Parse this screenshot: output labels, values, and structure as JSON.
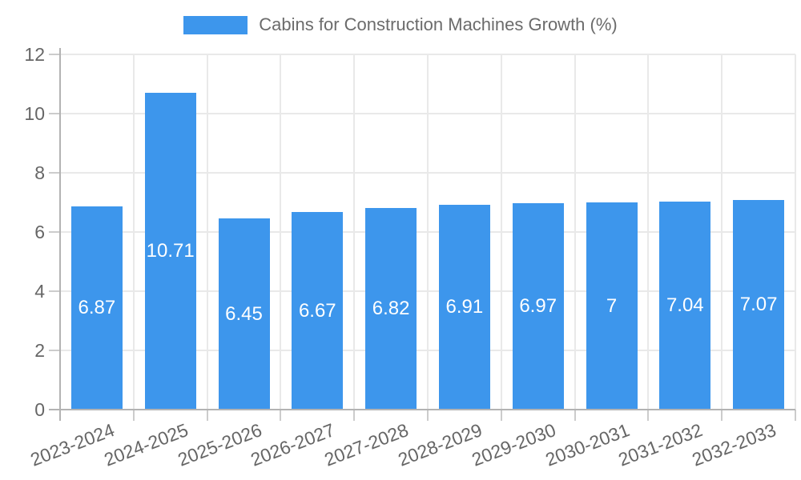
{
  "legend": {
    "label": "Cabins for Construction Machines Growth (%)"
  },
  "chart_data": {
    "type": "bar",
    "title": "Cabins for Construction Machines Growth (%)",
    "categories": [
      "2023-2024",
      "2024-2025",
      "2025-2026",
      "2026-2027",
      "2027-2028",
      "2028-2029",
      "2029-2030",
      "2030-2031",
      "2031-2032",
      "2032-2033"
    ],
    "values": [
      6.87,
      10.71,
      6.45,
      6.67,
      6.82,
      6.91,
      6.97,
      7,
      7.04,
      7.07
    ],
    "value_labels": [
      "6.87",
      "10.71",
      "6.45",
      "6.67",
      "6.82",
      "6.91",
      "6.97",
      "7",
      "7.04",
      "7.07"
    ],
    "xlabel": "",
    "ylabel": "",
    "ylim": [
      0,
      12
    ],
    "yticks": [
      0,
      2,
      4,
      6,
      8,
      10,
      12
    ],
    "grid": true,
    "legend_position": "top",
    "bar_color": "#3d96ec",
    "value_label_color": "#ffffff"
  },
  "colors": {
    "bar": "#3d96ec",
    "grid": "#e9e9e9",
    "axis": "#b3b3b3",
    "tick": "#cccccc",
    "text": "#666666",
    "value_label": "#ffffff",
    "background": "#ffffff"
  }
}
